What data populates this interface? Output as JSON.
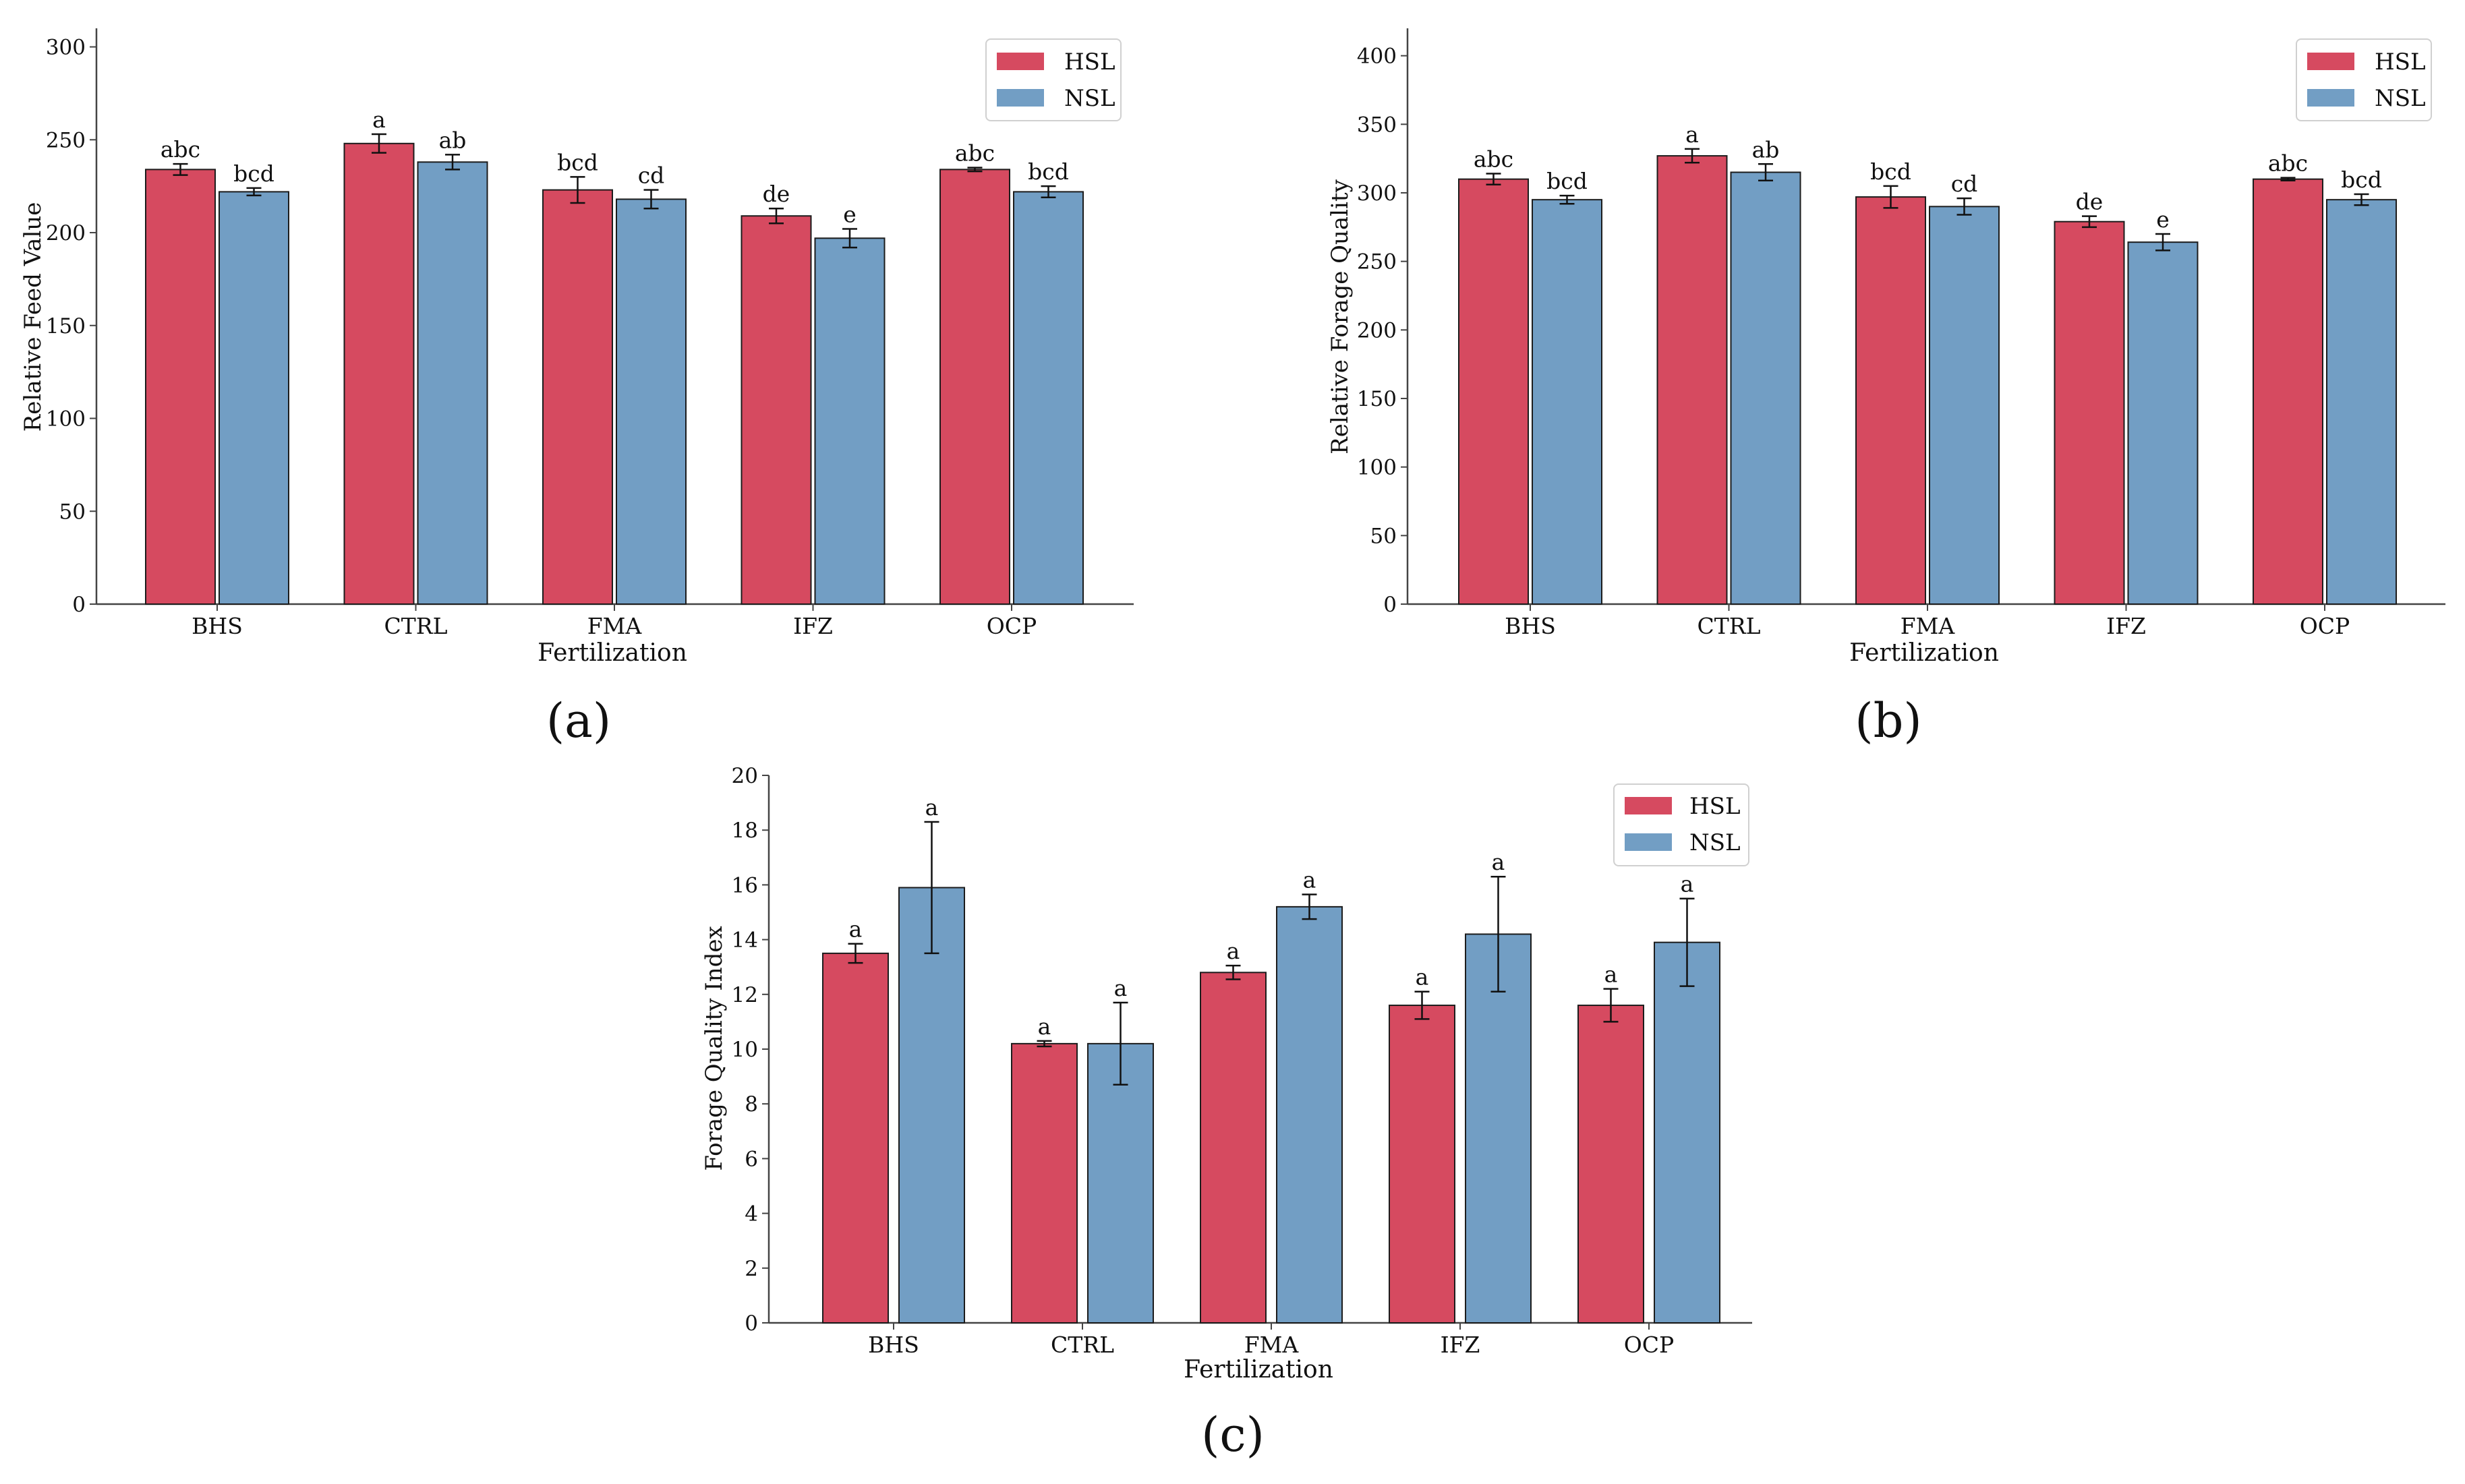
{
  "colors": {
    "HSL": "#d64a60",
    "NSL": "#729ec4",
    "axis": "#444444",
    "bar_edge": "#1c1c1c",
    "err": "#111111",
    "text": "#111111"
  },
  "chart_data": [
    {
      "id": "a",
      "type": "bar",
      "panel_label": "(a)",
      "title": "",
      "xlabel": "Fertilization",
      "ylabel": "Relative Feed Value",
      "ylim": [
        0,
        310
      ],
      "yticks": [
        0,
        50,
        100,
        150,
        200,
        250,
        300
      ],
      "categories": [
        "BHS",
        "CTRL",
        "FMA",
        "IFZ",
        "OCP"
      ],
      "legend_position": "top-right",
      "series": [
        {
          "name": "HSL",
          "values": [
            234,
            248,
            223,
            209,
            234
          ],
          "errors": [
            3,
            5,
            7,
            4,
            1
          ],
          "labels": [
            "abc",
            "a",
            "bcd",
            "de",
            "abc"
          ]
        },
        {
          "name": "NSL",
          "values": [
            222,
            238,
            218,
            197,
            222
          ],
          "errors": [
            2,
            4,
            5,
            5,
            3
          ],
          "labels": [
            "bcd",
            "ab",
            "cd",
            "e",
            "bcd"
          ]
        }
      ]
    },
    {
      "id": "b",
      "type": "bar",
      "panel_label": "(b)",
      "title": "",
      "xlabel": "Fertilization",
      "ylabel": "Relative Forage Quality",
      "ylim": [
        0,
        420
      ],
      "yticks": [
        0,
        50,
        100,
        150,
        200,
        250,
        300,
        350,
        400
      ],
      "categories": [
        "BHS",
        "CTRL",
        "FMA",
        "IFZ",
        "OCP"
      ],
      "legend_position": "top-right",
      "series": [
        {
          "name": "HSL",
          "values": [
            310,
            327,
            297,
            279,
            310
          ],
          "errors": [
            4,
            5,
            8,
            4,
            1
          ],
          "labels": [
            "abc",
            "a",
            "bcd",
            "de",
            "abc"
          ]
        },
        {
          "name": "NSL",
          "values": [
            295,
            315,
            290,
            264,
            295
          ],
          "errors": [
            3,
            6,
            6,
            6,
            4
          ],
          "labels": [
            "bcd",
            "ab",
            "cd",
            "e",
            "bcd"
          ]
        }
      ]
    },
    {
      "id": "c",
      "type": "bar",
      "panel_label": "(c)",
      "title": "",
      "xlabel": "Fertilization",
      "ylabel": "Forage Quality Index",
      "ylim": [
        0,
        20
      ],
      "yticks": [
        0,
        2,
        4,
        6,
        8,
        10,
        12,
        14,
        16,
        18,
        20
      ],
      "categories": [
        "BHS",
        "CTRL",
        "FMA",
        "IFZ",
        "OCP"
      ],
      "legend_position": "top-right",
      "series": [
        {
          "name": "HSL",
          "values": [
            13.5,
            10.2,
            12.8,
            11.6,
            11.6
          ],
          "errors": [
            0.35,
            0.1,
            0.25,
            0.5,
            0.6
          ],
          "labels": [
            "a",
            "a",
            "a",
            "a",
            "a"
          ]
        },
        {
          "name": "NSL",
          "values": [
            15.9,
            10.2,
            15.2,
            14.2,
            13.9
          ],
          "errors": [
            2.4,
            1.5,
            0.45,
            2.1,
            1.6
          ],
          "labels": [
            "a",
            "a",
            "a",
            "a",
            "a"
          ]
        }
      ]
    }
  ]
}
